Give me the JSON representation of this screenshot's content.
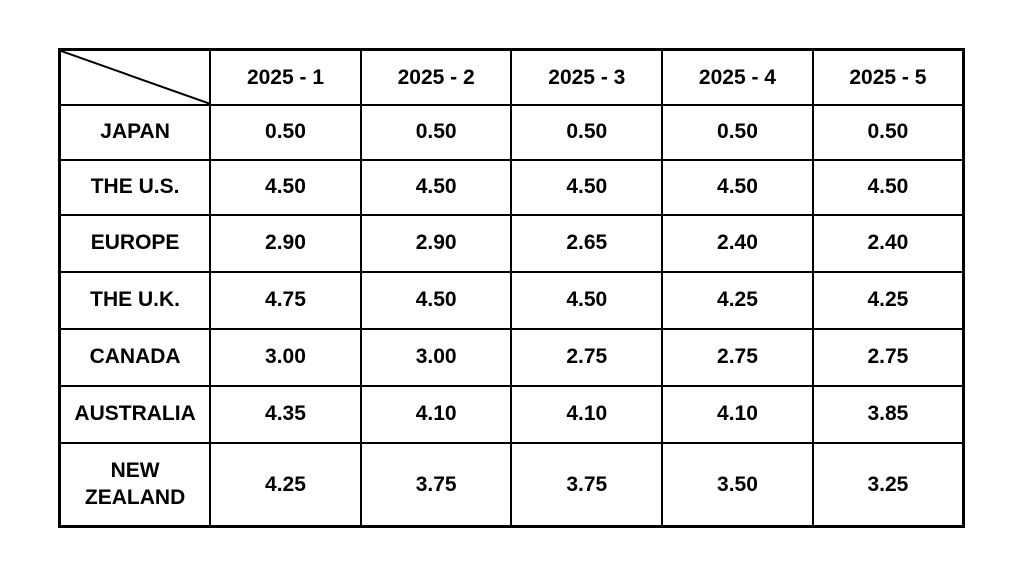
{
  "table": {
    "corner_label": "",
    "column_headers": [
      "2025 - 1",
      "2025 - 2",
      "2025 - 3",
      "2025 - 4",
      "2025 - 5"
    ],
    "rows": [
      {
        "label": "JAPAN",
        "values": [
          "0.50",
          "0.50",
          "0.50",
          "0.50",
          "0.50"
        ]
      },
      {
        "label": "THE U.S.",
        "values": [
          "4.50",
          "4.50",
          "4.50",
          "4.50",
          "4.50"
        ]
      },
      {
        "label": "EUROPE",
        "values": [
          "2.90",
          "2.90",
          "2.65",
          "2.40",
          "2.40"
        ]
      },
      {
        "label": "THE U.K.",
        "values": [
          "4.75",
          "4.50",
          "4.50",
          "4.25",
          "4.25"
        ]
      },
      {
        "label": "CANADA",
        "values": [
          "3.00",
          "3.00",
          "2.75",
          "2.75",
          "2.75"
        ]
      },
      {
        "label": "AUSTRALIA",
        "values": [
          "4.35",
          "4.10",
          "4.10",
          "4.10",
          "3.85"
        ]
      },
      {
        "label": "NEW\nZEALAND",
        "values": [
          "4.25",
          "3.75",
          "3.75",
          "3.50",
          "3.25"
        ]
      }
    ],
    "colors": {
      "border": "#000000",
      "text": "#000000",
      "background": "#ffffff"
    }
  },
  "chart_data": {
    "type": "table",
    "title": "",
    "categories": [
      "2025 - 1",
      "2025 - 2",
      "2025 - 3",
      "2025 - 4",
      "2025 - 5"
    ],
    "series": [
      {
        "name": "JAPAN",
        "values": [
          0.5,
          0.5,
          0.5,
          0.5,
          0.5
        ]
      },
      {
        "name": "THE U.S.",
        "values": [
          4.5,
          4.5,
          4.5,
          4.5,
          4.5
        ]
      },
      {
        "name": "EUROPE",
        "values": [
          2.9,
          2.9,
          2.65,
          2.4,
          2.4
        ]
      },
      {
        "name": "THE U.K.",
        "values": [
          4.75,
          4.5,
          4.5,
          4.25,
          4.25
        ]
      },
      {
        "name": "CANADA",
        "values": [
          3.0,
          3.0,
          2.75,
          2.75,
          2.75
        ]
      },
      {
        "name": "AUSTRALIA",
        "values": [
          4.35,
          4.1,
          4.1,
          4.1,
          3.85
        ]
      },
      {
        "name": "NEW ZEALAND",
        "values": [
          4.25,
          3.75,
          3.75,
          3.5,
          3.25
        ]
      }
    ]
  }
}
